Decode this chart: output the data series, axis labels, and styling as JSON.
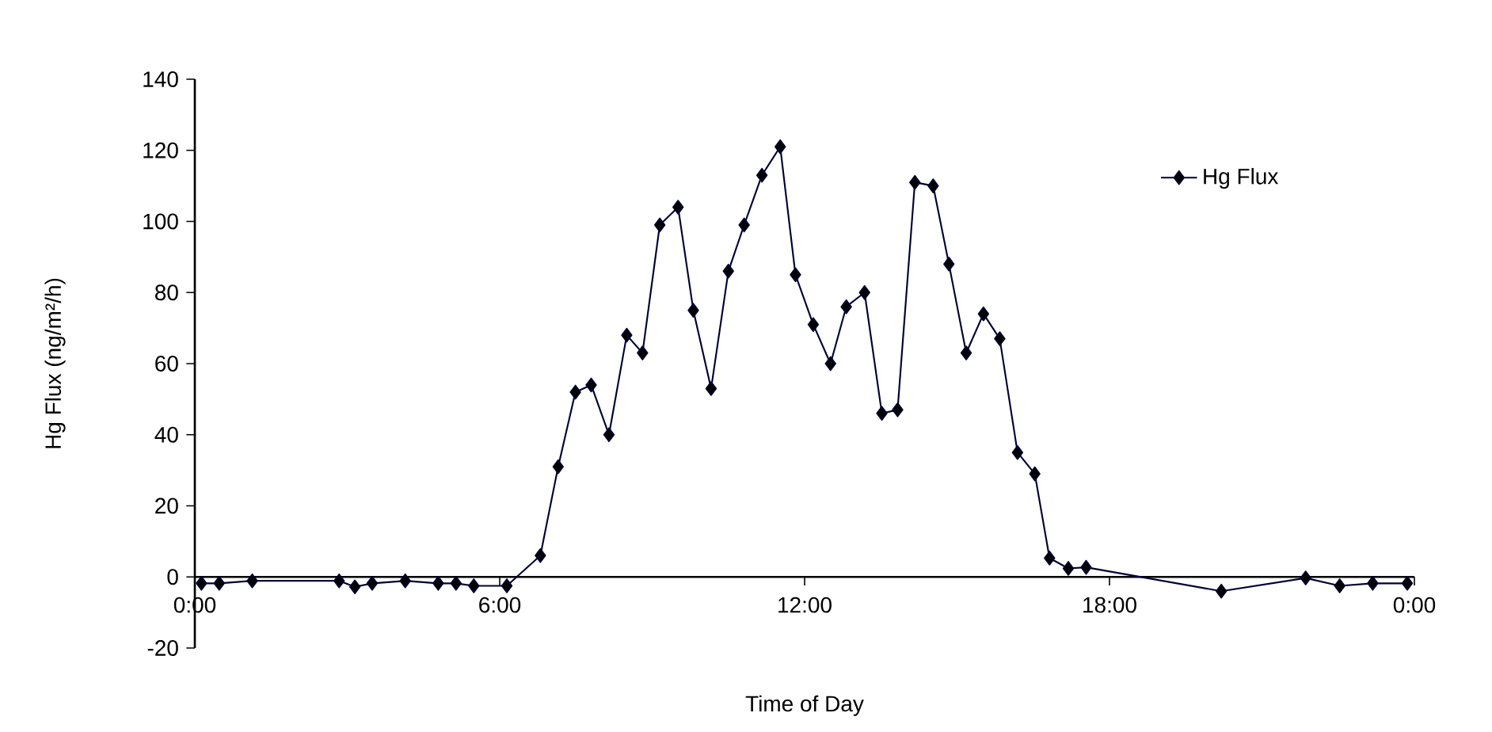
{
  "chart_data": {
    "type": "line",
    "xlabel": "Time of Day",
    "ylabel": "Hg Flux (ng/m²/h)",
    "x": [
      0.13,
      0.48,
      1.13,
      2.84,
      3.15,
      3.49,
      4.14,
      4.79,
      5.14,
      5.49,
      6.14,
      6.8,
      7.15,
      7.49,
      7.8,
      8.15,
      8.5,
      8.81,
      9.15,
      9.51,
      9.81,
      10.16,
      10.5,
      10.81,
      11.16,
      11.52,
      11.82,
      12.17,
      12.51,
      12.82,
      13.18,
      13.52,
      13.83,
      14.17,
      14.53,
      14.84,
      15.18,
      15.52,
      15.84,
      16.19,
      16.53,
      16.82,
      17.19,
      17.54,
      20.2,
      21.86,
      22.53,
      23.18,
      23.86
    ],
    "series": [
      {
        "name": "Hg Flux",
        "color": "#000033",
        "values": [
          -1.8,
          -1.8,
          -1.1,
          -1.1,
          -2.8,
          -1.8,
          -1.1,
          -1.8,
          -1.8,
          -2.5,
          -2.5,
          6,
          31,
          52,
          54,
          40,
          68,
          63,
          99,
          104,
          75,
          53,
          86,
          99,
          113,
          121,
          85,
          71,
          60,
          76,
          80,
          46,
          47,
          111,
          110,
          88,
          63,
          74,
          67,
          35,
          29,
          5.3,
          2.4,
          2.7,
          -4,
          -0.3,
          -2.5,
          -1.8,
          -1.8
        ]
      }
    ],
    "xlim": [
      0,
      24
    ],
    "xticks": [
      {
        "value": 0,
        "label": "0:00"
      },
      {
        "value": 6,
        "label": "6:00"
      },
      {
        "value": 12,
        "label": "12:00"
      },
      {
        "value": 18,
        "label": "18:00"
      },
      {
        "value": 24,
        "label": "0:00"
      }
    ],
    "ylim": [
      -20,
      140
    ],
    "yticks": [
      -20,
      0,
      20,
      40,
      60,
      80,
      100,
      120,
      140
    ],
    "grid": false,
    "legend": "top right",
    "marker": "diamond",
    "line_style": "solid"
  }
}
